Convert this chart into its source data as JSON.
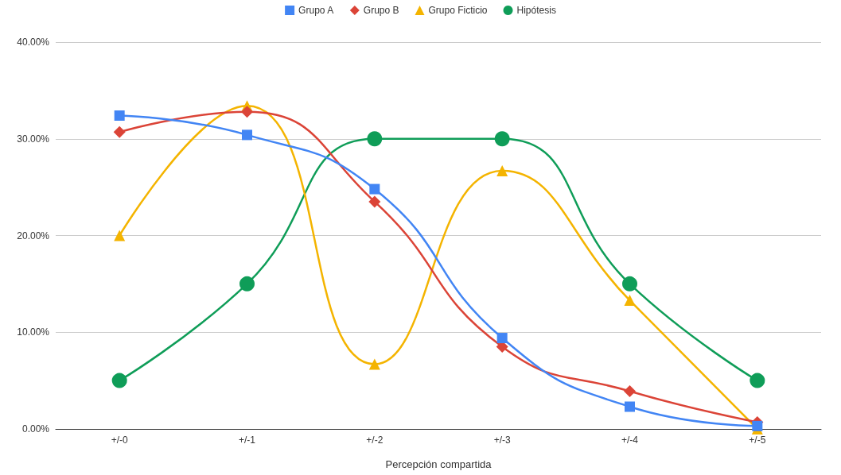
{
  "chart_data": {
    "type": "line",
    "xlabel": "Percepción compartida",
    "categories": [
      "+/-0",
      "+/-1",
      "+/-2",
      "+/-3",
      "+/-4",
      "+/-5"
    ],
    "series": [
      {
        "name": "Grupo A",
        "color": "#4285f4",
        "marker": "square",
        "values": [
          32.4,
          30.4,
          24.8,
          9.4,
          2.3,
          0.3
        ]
      },
      {
        "name": "Grupo B",
        "color": "#db4437",
        "marker": "diamond",
        "values": [
          30.7,
          32.8,
          23.5,
          8.5,
          3.9,
          0.7
        ]
      },
      {
        "name": "Grupo Ficticio",
        "color": "#f4b400",
        "marker": "triangle",
        "values": [
          20,
          33.4,
          6.7,
          26.7,
          13.3,
          0
        ]
      },
      {
        "name": "Hipótesis",
        "color": "#0f9d58",
        "marker": "circle",
        "values": [
          5,
          15,
          30,
          30,
          15,
          5
        ]
      }
    ],
    "ylim": [
      0,
      40
    ],
    "yticks": [
      {
        "value": 0,
        "label": "0.00%"
      },
      {
        "value": 10,
        "label": "10.00%"
      },
      {
        "value": 20,
        "label": "20.00%"
      },
      {
        "value": 30,
        "label": "30.00%"
      },
      {
        "value": 40,
        "label": "40.00%"
      }
    ],
    "grid": "y",
    "legend": "top",
    "line_style": "solid"
  }
}
